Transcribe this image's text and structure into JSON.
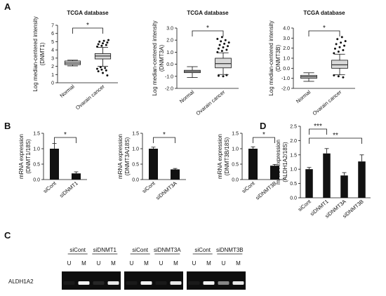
{
  "panels": {
    "A": "A",
    "B": "B",
    "C": "C",
    "D": "D"
  },
  "chart_data": [
    {
      "id": "A1",
      "type": "boxplot",
      "title": "TCGA database",
      "ylabel": "Log median-centered intensity (DNMT1)",
      "ylim": [
        0,
        7
      ],
      "yticks": [
        0,
        1,
        2,
        3,
        4,
        5,
        6,
        7
      ],
      "categories": [
        "Normal",
        "Ovarain cancer"
      ],
      "boxes": [
        {
          "name": "Normal",
          "whisker_low": 2.05,
          "q1": 2.2,
          "median": 2.4,
          "q3": 2.65,
          "whisker_high": 2.75,
          "outliers": []
        },
        {
          "name": "Ovarain cancer",
          "whisker_low": 2.0,
          "q1": 2.9,
          "median": 3.25,
          "q3": 3.55,
          "whisker_high": 4.3,
          "outliers": [
            4.4,
            4.5,
            4.6,
            4.7,
            4.8,
            4.9,
            5.0,
            5.1,
            5.2,
            1.9,
            1.8,
            1.7,
            1.6,
            1.5,
            1.4,
            1.2,
            0.9
          ]
        }
      ],
      "significance": "*"
    },
    {
      "id": "A2",
      "type": "boxplot",
      "title": "TCGA database",
      "ylabel": "Log median-centered intensity (DNMT3A)",
      "ylim": [
        -2.0,
        3.0
      ],
      "yticks": [
        -2.0,
        -1.0,
        0.0,
        1.0,
        2.0,
        3.0
      ],
      "ytick_labels": [
        "-2.0",
        "-1.0",
        "0.0",
        "1.0",
        "2.0",
        "3.0"
      ],
      "categories": [
        "Normal",
        "Ovarain cancer"
      ],
      "boxes": [
        {
          "name": "Normal",
          "whisker_low": -1.1,
          "q1": -0.7,
          "median": -0.6,
          "q3": -0.5,
          "whisker_high": -0.2,
          "outliers": []
        },
        {
          "name": "Ovarain cancer",
          "whisker_low": -0.85,
          "q1": -0.3,
          "median": 0.05,
          "q3": 0.5,
          "whisker_high": 0.95,
          "outliers": [
            1.0,
            1.1,
            1.2,
            1.3,
            1.4,
            1.5,
            1.6,
            1.7,
            1.8,
            1.9,
            2.0,
            2.1,
            2.25,
            -0.9,
            -0.95,
            -1.0
          ]
        }
      ],
      "significance": "*"
    },
    {
      "id": "A3",
      "type": "boxplot",
      "title": "TCGA database",
      "ylabel": "Log median-centered intensity (DNMT3B)",
      "ylim": [
        -2.0,
        4.0
      ],
      "yticks": [
        -2.0,
        -1.0,
        0.0,
        1.0,
        2.0,
        3.0,
        4.0
      ],
      "ytick_labels": [
        "-2.0",
        "-1.0",
        "0.0",
        "1.0",
        "2.0",
        "3.0",
        "4.0"
      ],
      "categories": [
        "Normal",
        "Ovarain cancer"
      ],
      "boxes": [
        {
          "name": "Normal",
          "whisker_low": -1.3,
          "q1": -1.0,
          "median": -0.85,
          "q3": -0.7,
          "whisker_high": -0.45,
          "outliers": []
        },
        {
          "name": "Ovarain cancer",
          "whisker_low": -0.65,
          "q1": 0.0,
          "median": 0.35,
          "q3": 0.8,
          "whisker_high": 1.4,
          "outliers": [
            1.5,
            1.65,
            1.8,
            1.95,
            2.1,
            2.25,
            2.4,
            2.55,
            2.7,
            2.9,
            3.1,
            -0.7,
            -0.8,
            -0.9
          ]
        }
      ],
      "significance": "*"
    },
    {
      "id": "B1",
      "type": "bar",
      "ylabel": "mRNA expression (DNMT1/18S)",
      "ylim": [
        0,
        1.5
      ],
      "yticks": [
        0,
        0.5,
        1.0,
        1.5
      ],
      "ytick_labels": [
        "0.0",
        "0.5",
        "1.0",
        "1.5"
      ],
      "categories": [
        "siCont",
        "siDNMT1"
      ],
      "values": [
        1.0,
        0.2
      ],
      "errors": [
        0.17,
        0.05
      ],
      "significance": "*"
    },
    {
      "id": "B2",
      "type": "bar",
      "ylabel": "mRNA expression (DNMT3A/18S)",
      "ylim": [
        0,
        1.5
      ],
      "yticks": [
        0,
        0.5,
        1.0,
        1.5
      ],
      "ytick_labels": [
        "0.0",
        "0.5",
        "1.0",
        "1.5"
      ],
      "categories": [
        "siCont",
        "siDNMT3A"
      ],
      "values": [
        1.0,
        0.33
      ],
      "errors": [
        0.05,
        0.03
      ],
      "significance": "*"
    },
    {
      "id": "B3",
      "type": "bar",
      "ylabel": "mRNA expression (DNMT3B/18S)",
      "ylim": [
        0,
        1.5
      ],
      "yticks": [
        0,
        0.5,
        1.0,
        1.5
      ],
      "ytick_labels": [
        "0.0",
        "0.5",
        "1.0",
        "1.5"
      ],
      "categories": [
        "siCont",
        "siDNMT3B"
      ],
      "values": [
        1.0,
        0.45
      ],
      "errors": [
        0.06,
        0.04
      ],
      "significance": "*"
    },
    {
      "id": "D",
      "type": "bar",
      "ylabel": "mRNA expression (ALDH1A2/18S)",
      "ylim": [
        0,
        2.5
      ],
      "yticks": [
        0,
        0.5,
        1.0,
        1.5,
        2.0,
        2.5
      ],
      "ytick_labels": [
        "0.0",
        "0.5",
        "1.0",
        "1.5",
        "2.0",
        "2.5"
      ],
      "categories": [
        "siCont",
        "siDNMT1",
        "siDNMT3A",
        "siDNMT3B"
      ],
      "values": [
        1.0,
        1.55,
        0.78,
        1.27
      ],
      "errors": [
        0.06,
        0.17,
        0.1,
        0.23
      ],
      "significance": [
        {
          "from": 0,
          "to": 1,
          "label": "***"
        },
        {
          "from": 0,
          "to": 3,
          "label": "**"
        }
      ]
    }
  ],
  "gel": {
    "row_label": "ALDH1A2",
    "groups": [
      {
        "treatments": [
          "siCont",
          "siDNMT1"
        ],
        "lanes": [
          "U",
          "M",
          "U",
          "M"
        ],
        "intensity": [
          0.05,
          0.95,
          0.1,
          0.9
        ]
      },
      {
        "treatments": [
          "siCont",
          "siDNMT3A"
        ],
        "lanes": [
          "U",
          "M",
          "U",
          "M"
        ],
        "intensity": [
          0.05,
          0.95,
          0.05,
          0.9
        ]
      },
      {
        "treatments": [
          "siCont",
          "siDNMT3B"
        ],
        "lanes": [
          "U",
          "M",
          "U",
          "M"
        ],
        "intensity": [
          0.05,
          0.95,
          0.5,
          0.9
        ]
      }
    ]
  },
  "colors": {
    "bar": "#111111",
    "box_fill": "#d8d8d8",
    "gel_bg": "#0e0e0e",
    "band": "#ffffff"
  }
}
